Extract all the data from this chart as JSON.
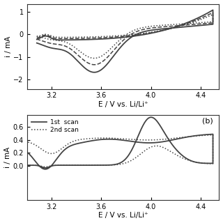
{
  "top_panel": {
    "xlabel": "E / V vs. Li/Li⁺",
    "ylabel": "i / mA",
    "xlim": [
      3.0,
      4.55
    ],
    "ylim": [
      -2.4,
      1.35
    ],
    "xticks": [
      3.2,
      3.6,
      4.0,
      4.4
    ],
    "yticks": [
      -2.0,
      -1.0,
      0.0,
      1.0
    ],
    "background": "#ffffff",
    "line_color": "#444444"
  },
  "bottom_panel": {
    "xlabel": "E / V vs. Li/Li⁺",
    "ylabel": "i / mA",
    "xlim": [
      3.0,
      4.55
    ],
    "ylim": [
      -0.52,
      0.78
    ],
    "xticks": [
      3.2,
      3.6,
      4.0,
      4.4
    ],
    "yticks": [
      0.0,
      0.2,
      0.4,
      0.6
    ],
    "background": "#ffffff",
    "label": "(b)",
    "legend_1st": "1st  scan",
    "legend_2nd": "2nd scan"
  }
}
